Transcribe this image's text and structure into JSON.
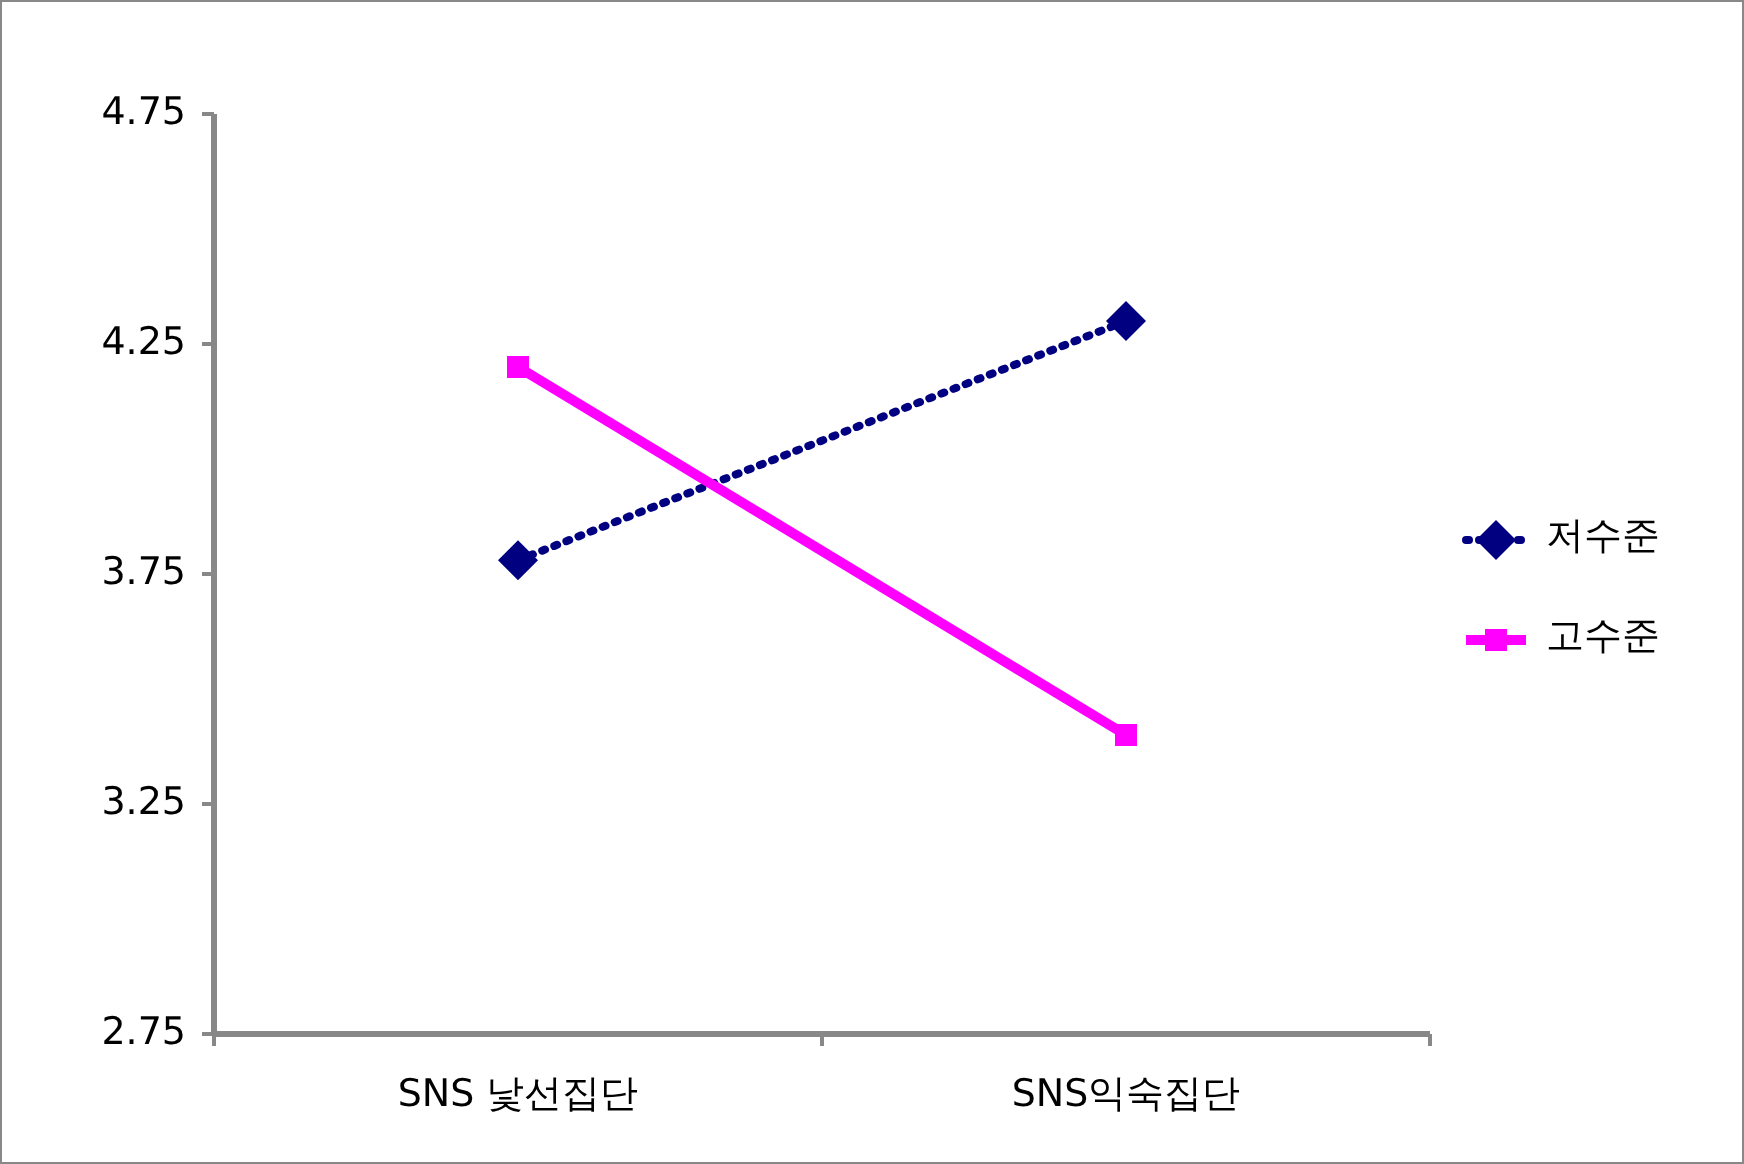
{
  "chart_data": {
    "type": "line",
    "categories": [
      "SNS 낯선집단",
      "SNS익숙집단"
    ],
    "series": [
      {
        "name": "저수준",
        "color": "#000080",
        "values": [
          3.78,
          4.3
        ],
        "marker": "diamond",
        "line_style": "dotted"
      },
      {
        "name": "고수준",
        "color": "#ff00ff",
        "values": [
          4.2,
          3.4
        ],
        "marker": "square",
        "line_style": "solid"
      }
    ],
    "ylim": [
      2.75,
      4.75
    ],
    "yticks": [
      {
        "value": 2.75,
        "label": "2.75"
      },
      {
        "value": 3.25,
        "label": "3.25"
      },
      {
        "value": 3.75,
        "label": "3.75"
      },
      {
        "value": 4.25,
        "label": "4.25"
      },
      {
        "value": 4.75,
        "label": "4.75"
      }
    ],
    "grid": false,
    "legend": "right"
  }
}
